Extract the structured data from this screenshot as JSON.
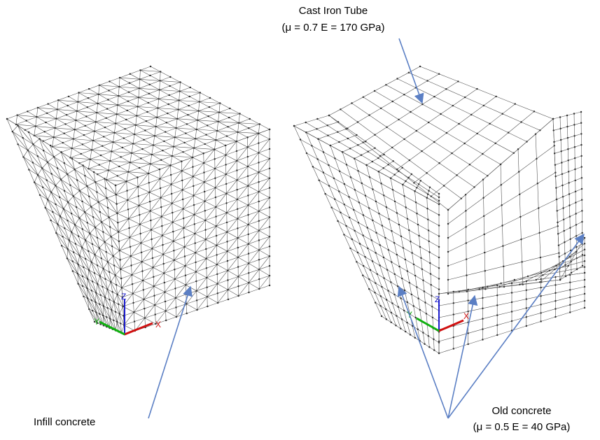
{
  "annotations": {
    "cast_iron": {
      "title": "Cast Iron Tube",
      "props": "(μ = 0.7 E = 170 GPa)"
    },
    "infill": "Infill concrete",
    "old_concrete": {
      "title": "Old concrete",
      "props": "(μ = 0.5 E = 40 GPa)"
    }
  },
  "axes_left": {
    "z": "Z",
    "y": "Y",
    "x": "X"
  },
  "axes_right": {
    "z": "Z",
    "y": "Y",
    "x": "X"
  }
}
